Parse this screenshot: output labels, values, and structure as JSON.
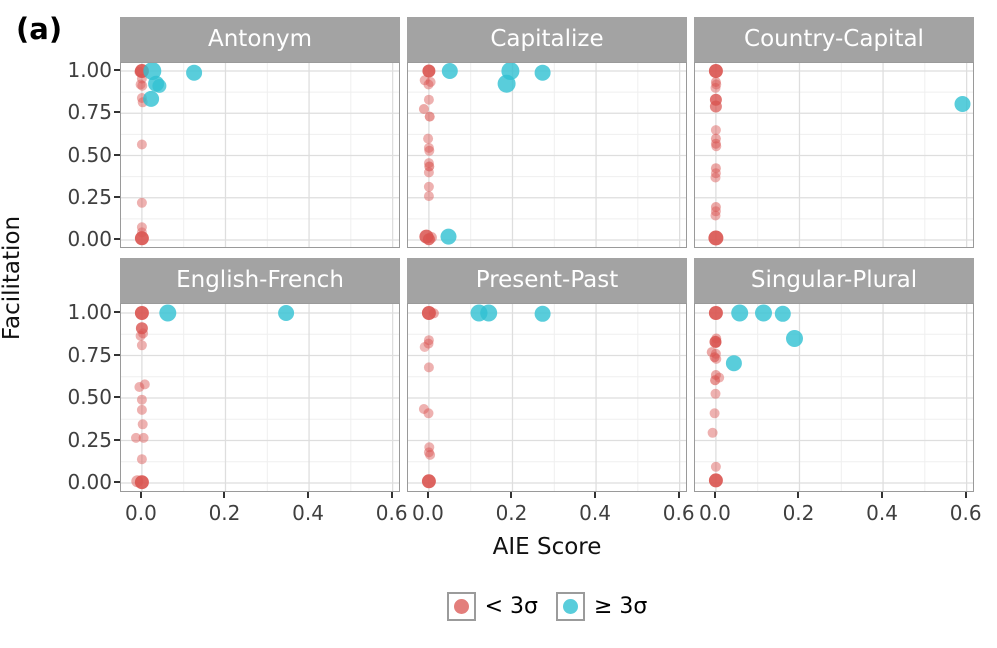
{
  "figure": {
    "label": "(a)"
  },
  "chart_data": {
    "type": "scatter",
    "title": "",
    "xlabel": "AIE Score",
    "ylabel": "Facilitation",
    "xlim": [
      -0.05,
      0.62
    ],
    "ylim": [
      -0.053,
      1.053
    ],
    "grid": "on",
    "x_tick_values": [
      0.0,
      0.2,
      0.4,
      0.6
    ],
    "x_tick_labels": [
      "0.0",
      "0.2",
      "0.4",
      "0.6"
    ],
    "y_tick_values": [
      0.0,
      0.25,
      0.5,
      0.75,
      1.0
    ],
    "y_tick_labels": [
      "0.00",
      "0.25",
      "0.50",
      "0.75",
      "1.00"
    ],
    "x_minor_values": [
      0.1,
      0.3,
      0.5
    ],
    "y_minor_values": [
      0.125,
      0.375,
      0.625,
      0.875
    ],
    "colors": {
      "lt_3sigma": "#d9534f",
      "ge_3sigma": "#2fc0d2",
      "strip_bg": "#a3a3a3",
      "strip_text": "#ffffff",
      "grid_major": "#dedede",
      "grid_minor": "#efefef",
      "panel_border": "#9a9a9a",
      "tick_text": "#3f3f3f"
    },
    "legend": {
      "position": "bottom",
      "entries": [
        {
          "label": "< 3σ",
          "series": "lt_3sigma",
          "color": "#d9534f"
        },
        {
          "label": "≥ 3σ",
          "series": "ge_3sigma",
          "color": "#2fc0d2"
        }
      ]
    },
    "facets": [
      {
        "title": "Antonym",
        "row": 0,
        "col": 0,
        "series": [
          {
            "name": "< 3σ",
            "key": "lt_3sigma",
            "points": [
              [
                0,
                1,
                7,
                0.9
              ],
              [
                -0.006,
                0.995,
                5,
                0.5
              ],
              [
                0,
                0.955,
                5,
                0.45
              ],
              [
                -0.003,
                0.92,
                5,
                0.45
              ],
              [
                0.001,
                0.913,
                5,
                0.45
              ],
              [
                0,
                0.84,
                5,
                0.45
              ],
              [
                0.002,
                0.815,
                5,
                0.45
              ],
              [
                0,
                0.565,
                5,
                0.45
              ],
              [
                0,
                0.22,
                5,
                0.45
              ],
              [
                0,
                0.075,
                5,
                0.45
              ],
              [
                0,
                0.045,
                5,
                0.4
              ],
              [
                0,
                0.01,
                7,
                0.9
              ]
            ]
          },
          {
            "name": "≥ 3σ",
            "key": "ge_3sigma",
            "points": [
              [
                0.025,
                1,
                9,
                0.8
              ],
              [
                0.034,
                0.925,
                8,
                0.8
              ],
              [
                0.042,
                0.912,
                7,
                0.75
              ],
              [
                0.022,
                0.835,
                8,
                0.8
              ],
              [
                0.125,
                0.99,
                8,
                0.8
              ]
            ]
          }
        ]
      },
      {
        "title": "Capitalize",
        "row": 0,
        "col": 1,
        "series": [
          {
            "name": "< 3σ",
            "key": "lt_3sigma",
            "points": [
              [
                0,
                1,
                6.5,
                0.9
              ],
              [
                -0.01,
                0.945,
                5,
                0.45
              ],
              [
                0.004,
                0.935,
                5,
                0.45
              ],
              [
                -0.001,
                0.92,
                5,
                0.45
              ],
              [
                0,
                0.83,
                5,
                0.45
              ],
              [
                -0.012,
                0.775,
                5,
                0.5
              ],
              [
                0.002,
                0.73,
                5,
                0.6
              ],
              [
                -0.002,
                0.6,
                5,
                0.45
              ],
              [
                0,
                0.545,
                5,
                0.45
              ],
              [
                0.001,
                0.528,
                5,
                0.45
              ],
              [
                0,
                0.455,
                5,
                0.45
              ],
              [
                0.001,
                0.435,
                5,
                0.6
              ],
              [
                0,
                0.4,
                5,
                0.45
              ],
              [
                0,
                0.315,
                5,
                0.45
              ],
              [
                0,
                0.26,
                5,
                0.45
              ],
              [
                -0.006,
                0.02,
                7,
                0.85
              ],
              [
                0.006,
                0.015,
                5.5,
                0.5
              ],
              [
                0,
                0.005,
                6,
                0.8
              ]
            ]
          },
          {
            "name": "≥ 3σ",
            "key": "ge_3sigma",
            "points": [
              [
                0.05,
                1,
                8,
                0.8
              ],
              [
                0.195,
                1,
                9,
                0.8
              ],
              [
                0.186,
                0.925,
                9,
                0.8
              ],
              [
                0.272,
                0.99,
                8,
                0.8
              ],
              [
                0.047,
                0.02,
                8,
                0.8
              ]
            ]
          }
        ]
      },
      {
        "title": "Country-Capital",
        "row": 0,
        "col": 2,
        "series": [
          {
            "name": "< 3σ",
            "key": "lt_3sigma",
            "points": [
              [
                0,
                1,
                7,
                0.9
              ],
              [
                0,
                0.935,
                5,
                0.5
              ],
              [
                0.001,
                0.92,
                5,
                0.45
              ],
              [
                -0.001,
                0.9,
                5,
                0.45
              ],
              [
                0,
                0.83,
                6,
                0.8
              ],
              [
                0,
                0.79,
                6,
                0.7
              ],
              [
                0,
                0.65,
                5,
                0.45
              ],
              [
                0,
                0.6,
                5,
                0.5
              ],
              [
                0,
                0.57,
                5,
                0.5
              ],
              [
                0.001,
                0.555,
                5,
                0.45
              ],
              [
                0,
                0.425,
                5,
                0.5
              ],
              [
                0,
                0.395,
                5,
                0.45
              ],
              [
                -0.001,
                0.37,
                5,
                0.45
              ],
              [
                0,
                0.195,
                5,
                0.5
              ],
              [
                0,
                0.17,
                5,
                0.45
              ],
              [
                -0.001,
                0.145,
                5,
                0.45
              ],
              [
                0,
                0.012,
                7.5,
                0.9
              ]
            ]
          },
          {
            "name": "≥ 3σ",
            "key": "ge_3sigma",
            "points": [
              [
                0.59,
                0.805,
                8,
                0.8
              ]
            ]
          }
        ]
      },
      {
        "title": "English-French",
        "row": 1,
        "col": 0,
        "series": [
          {
            "name": "< 3σ",
            "key": "lt_3sigma",
            "points": [
              [
                0,
                1,
                7,
                0.9
              ],
              [
                0,
                0.91,
                6,
                0.8
              ],
              [
                0.003,
                0.88,
                5,
                0.45
              ],
              [
                -0.003,
                0.865,
                5,
                0.45
              ],
              [
                0,
                0.81,
                5,
                0.45
              ],
              [
                0.007,
                0.58,
                5,
                0.45
              ],
              [
                -0.006,
                0.565,
                5,
                0.45
              ],
              [
                0,
                0.49,
                5,
                0.45
              ],
              [
                0,
                0.43,
                5,
                0.45
              ],
              [
                0.002,
                0.345,
                5,
                0.45
              ],
              [
                -0.014,
                0.265,
                5,
                0.45
              ],
              [
                0.004,
                0.265,
                5,
                0.45
              ],
              [
                0,
                0.14,
                5,
                0.45
              ],
              [
                -0.011,
                0.01,
                6,
                0.5
              ],
              [
                0,
                0.005,
                7,
                0.9
              ]
            ]
          },
          {
            "name": "≥ 3σ",
            "key": "ge_3sigma",
            "points": [
              [
                0.062,
                1,
                8.5,
                0.8
              ],
              [
                0.345,
                1,
                8,
                0.8
              ]
            ]
          }
        ]
      },
      {
        "title": "Present-Past",
        "row": 1,
        "col": 1,
        "series": [
          {
            "name": "< 3σ",
            "key": "lt_3sigma",
            "points": [
              [
                0,
                1,
                7,
                0.9
              ],
              [
                0.012,
                0.998,
                5,
                0.5
              ],
              [
                0,
                0.84,
                5,
                0.45
              ],
              [
                -0.001,
                0.82,
                5,
                0.45
              ],
              [
                -0.01,
                0.8,
                5,
                0.4
              ],
              [
                0,
                0.68,
                5,
                0.45
              ],
              [
                -0.012,
                0.435,
                5,
                0.45
              ],
              [
                -0.001,
                0.41,
                5,
                0.45
              ],
              [
                0.001,
                0.21,
                5,
                0.45
              ],
              [
                0,
                0.18,
                5,
                0.45
              ],
              [
                0.003,
                0.165,
                5,
                0.45
              ],
              [
                0,
                0.01,
                7,
                0.9
              ]
            ]
          },
          {
            "name": "≥ 3σ",
            "key": "ge_3sigma",
            "points": [
              [
                0.12,
                1,
                8.5,
                0.8
              ],
              [
                0.143,
                1,
                8.5,
                0.8
              ],
              [
                0.272,
                0.995,
                8,
                0.8
              ]
            ]
          }
        ]
      },
      {
        "title": "Singular-Plural",
        "row": 1,
        "col": 2,
        "series": [
          {
            "name": "< 3σ",
            "key": "lt_3sigma",
            "points": [
              [
                0,
                1,
                7,
                0.9
              ],
              [
                0.001,
                0.85,
                5,
                0.5
              ],
              [
                -0.001,
                0.83,
                6,
                0.85
              ],
              [
                0.001,
                0.825,
                5,
                0.5
              ],
              [
                -0.01,
                0.77,
                5,
                0.5
              ],
              [
                0,
                0.76,
                5,
                0.45
              ],
              [
                -0.003,
                0.74,
                5,
                0.6
              ],
              [
                0.001,
                0.73,
                5,
                0.45
              ],
              [
                0,
                0.635,
                5,
                0.5
              ],
              [
                0.008,
                0.62,
                5,
                0.45
              ],
              [
                -0.002,
                0.605,
                5,
                0.6
              ],
              [
                -0.001,
                0.525,
                5,
                0.45
              ],
              [
                -0.003,
                0.41,
                5,
                0.45
              ],
              [
                -0.008,
                0.295,
                5,
                0.45
              ],
              [
                0,
                0.095,
                5,
                0.45
              ],
              [
                0,
                0.015,
                7,
                0.9
              ]
            ]
          },
          {
            "name": "≥ 3σ",
            "key": "ge_3sigma",
            "points": [
              [
                0.057,
                1,
                8.5,
                0.8
              ],
              [
                0.114,
                1,
                8.5,
                0.8
              ],
              [
                0.16,
                0.995,
                8,
                0.8
              ],
              [
                0.188,
                0.85,
                8.5,
                0.8
              ],
              [
                0.043,
                0.705,
                8,
                0.8
              ]
            ]
          }
        ]
      }
    ]
  }
}
